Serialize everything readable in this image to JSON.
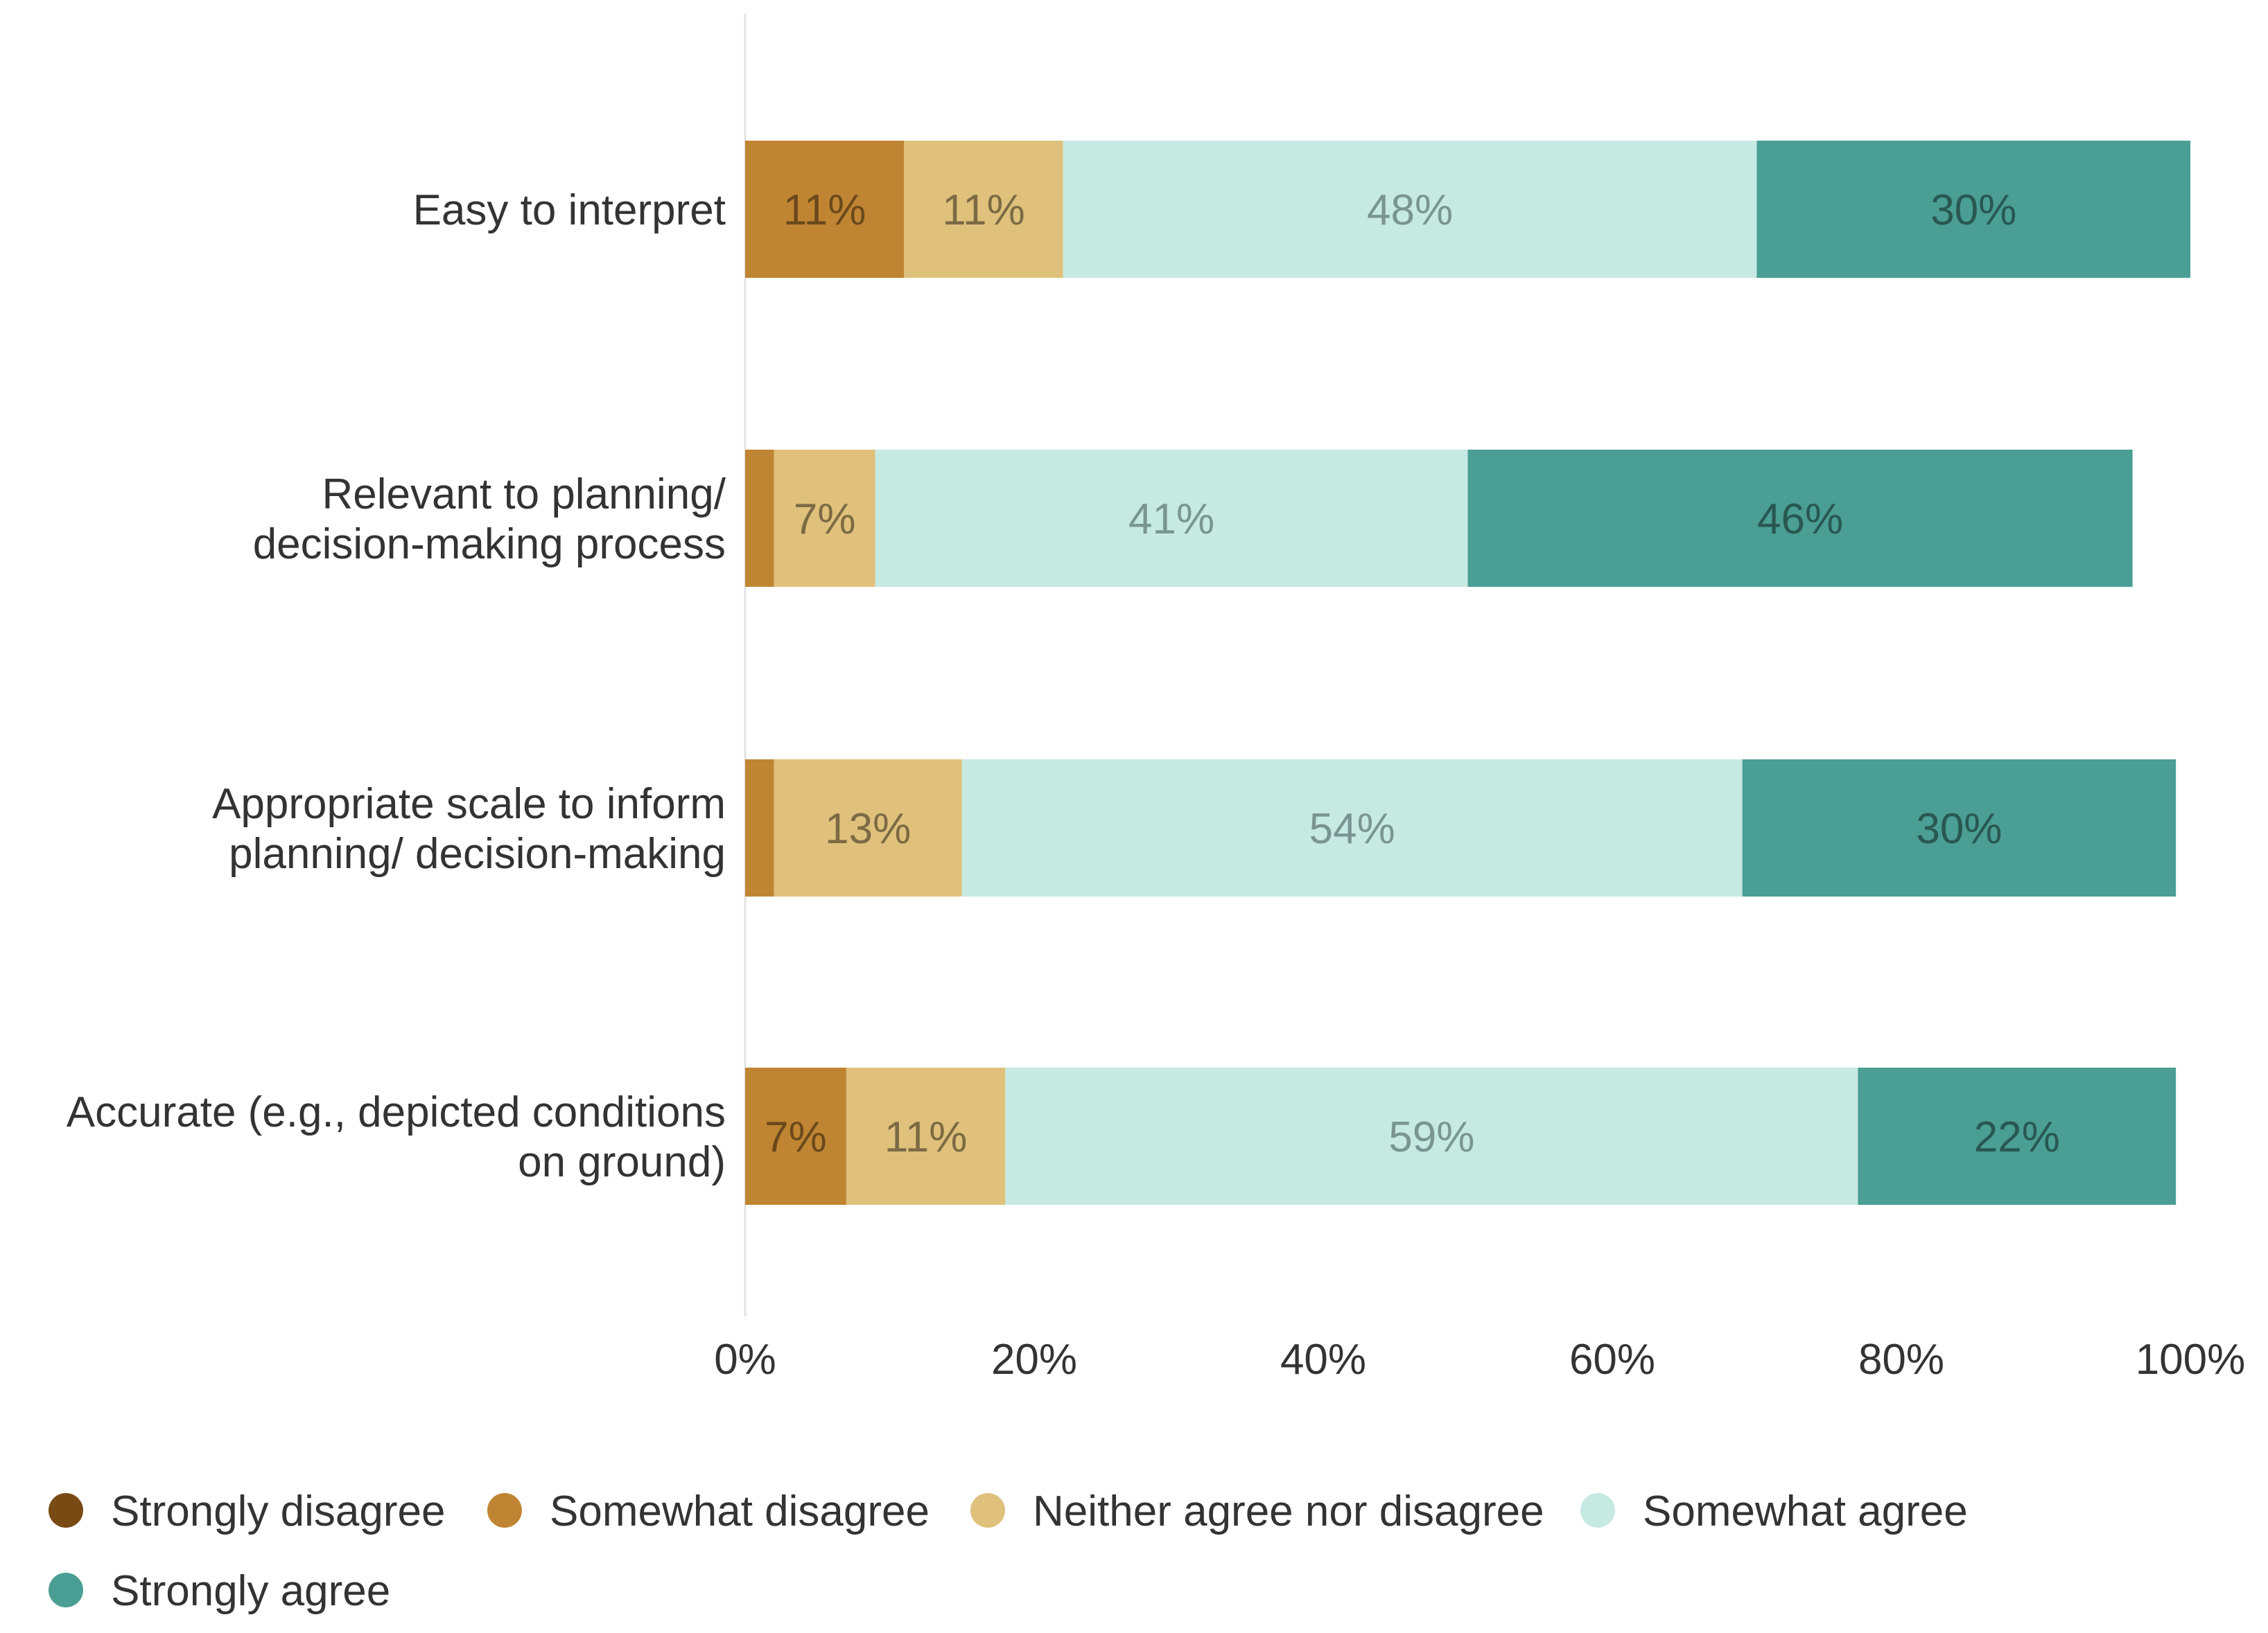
{
  "chart_data": {
    "type": "bar",
    "orientation": "horizontal",
    "stacked": true,
    "categories": [
      [
        "Easy to interpret"
      ],
      [
        "Relevant to planning/",
        "decision-making process"
      ],
      [
        "Appropriate scale to inform",
        "planning/ decision-making"
      ],
      [
        "Accurate (e.g., depicted conditions",
        "on ground)"
      ]
    ],
    "series": [
      {
        "name": "Strongly disagree",
        "color": "#7a4a14",
        "values": [
          0,
          0,
          0,
          0
        ],
        "labels": [
          "",
          "",
          "",
          ""
        ]
      },
      {
        "name": "Somewhat disagree",
        "color": "#c08532",
        "values": [
          11,
          2,
          2,
          7
        ],
        "labels": [
          "11%",
          "",
          "",
          "7%"
        ]
      },
      {
        "name": "Neither agree nor disagree",
        "color": "#dfc17c",
        "values": [
          11,
          7,
          13,
          11
        ],
        "labels": [
          "11%",
          "7%",
          "13%",
          "11%"
        ]
      },
      {
        "name": "Somewhat agree",
        "color": "#c6e9e2",
        "values": [
          48,
          41,
          54,
          59
        ],
        "labels": [
          "48%",
          "41%",
          "54%",
          "59%"
        ]
      },
      {
        "name": "Strongly agree",
        "color": "#4a9e94",
        "values": [
          30,
          46,
          30,
          22
        ],
        "labels": [
          "30%",
          "46%",
          "30%",
          "22%"
        ]
      }
    ],
    "xlim": [
      0,
      100
    ],
    "xticks": [
      "0%",
      "20%",
      "40%",
      "60%",
      "80%",
      "100%"
    ],
    "grid": false,
    "legend_position": "bottom"
  }
}
